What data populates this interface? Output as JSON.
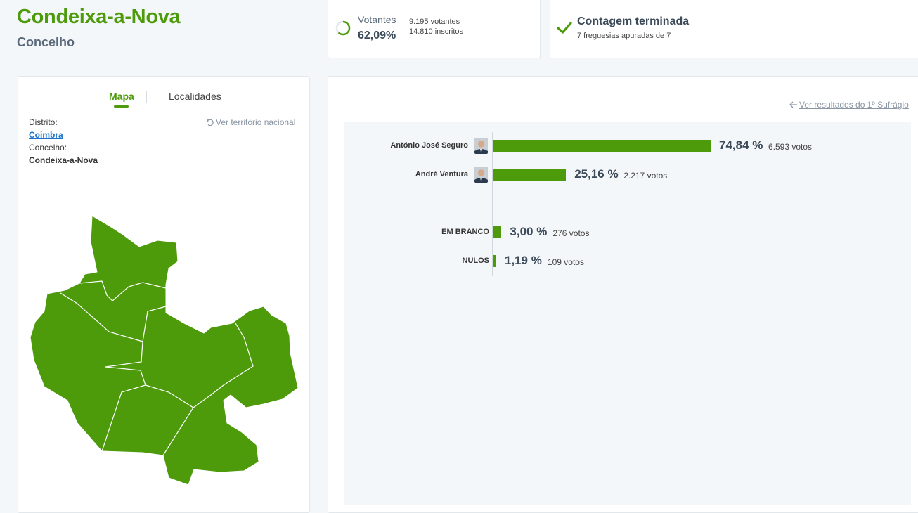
{
  "header": {
    "title": "Condeixa-a-Nova",
    "subtitle": "Concelho"
  },
  "votantes": {
    "label": "Votantes",
    "percent": "62,09%",
    "participation": 0.6209,
    "votantes_text": "9.195 votantes",
    "inscritos_text": "14.810 inscritos"
  },
  "contagem": {
    "title": "Contagem terminada",
    "subtitle": "7 freguesias apuradas de 7"
  },
  "tabs": [
    {
      "label": "Mapa",
      "active": true
    },
    {
      "label": "Localidades",
      "active": false
    }
  ],
  "territory": {
    "distrito_label": "Distrito:",
    "distrito_value": "Coimbra",
    "concelho_label": "Concelho:",
    "concelho_value": "Condeixa-a-Nova",
    "nacional_link": "Ver território nacional"
  },
  "results_link": "Ver resultados do 1º Sufrágio",
  "colors": {
    "accent": "#4d9b0b",
    "map_fill": "#4d9b0b",
    "link": "#1a73c9"
  },
  "chart_data": {
    "type": "bar",
    "orientation": "horizontal",
    "categories": [
      "António José Seguro",
      "André Ventura",
      "EM BRANCO",
      "NULOS"
    ],
    "values": [
      74.84,
      25.16,
      3.0,
      1.19
    ],
    "labels": [
      "74,84 %",
      "25,16 %",
      "3,00 %",
      "1,19 %"
    ],
    "votes": [
      "6.593 votos",
      "2.217 votos",
      "276 votos",
      "109 votos"
    ],
    "has_photo": [
      true,
      true,
      false,
      false
    ]
  }
}
